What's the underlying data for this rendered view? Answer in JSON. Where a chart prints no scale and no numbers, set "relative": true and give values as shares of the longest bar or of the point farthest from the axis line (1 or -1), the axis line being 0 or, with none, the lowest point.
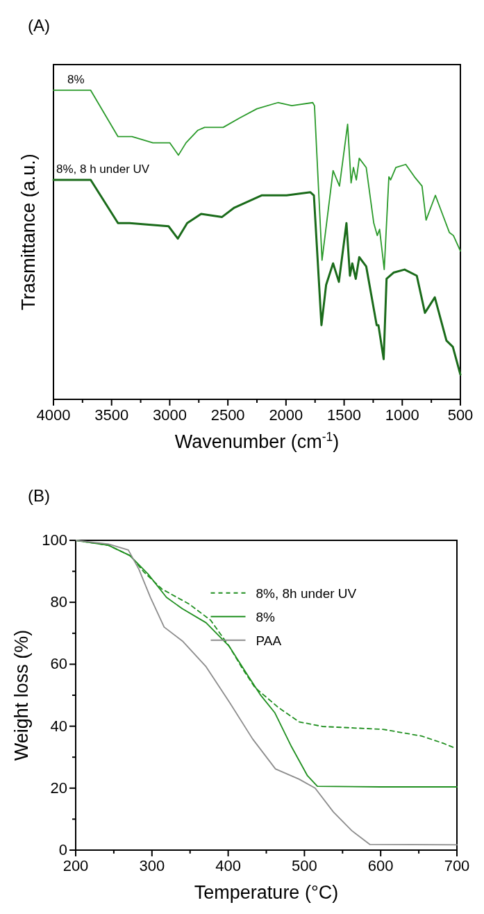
{
  "chart_data": [
    {
      "type": "line",
      "title": "(A)",
      "xlabel": "Wavenumber (cm$^{-1}$)",
      "ylabel": "Trasmittance (a.u.)",
      "relative": true,
      "legend": false,
      "tick_labels": "x",
      "xlim": [
        4000,
        500
      ],
      "xticks": [
        4000,
        {
          "value": 3750,
          "label": null
        },
        3500,
        {
          "value": 3250,
          "label": null
        },
        3000,
        {
          "value": 2750,
          "label": null
        },
        2500,
        {
          "value": 2250,
          "label": null
        },
        2000,
        {
          "value": 1750,
          "label": null
        },
        1500,
        {
          "value": 1250,
          "label": null
        },
        1000,
        {
          "value": 750,
          "label": null
        },
        500
      ],
      "series": [
        {
          "name": "8%",
          "color": "#2a9a2a",
          "x": [
            4000,
            3680,
            3445,
            3325,
            3145,
            3000,
            2925,
            2860,
            2760,
            2700,
            2540,
            2400,
            2250,
            2070,
            1950,
            1770,
            1755,
            1690,
            1595,
            1540,
            1470,
            1440,
            1420,
            1395,
            1370,
            1310,
            1245,
            1215,
            1195,
            1155,
            1115,
            1100,
            1055,
            970,
            895,
            830,
            795,
            715,
            655,
            595,
            560,
            500
          ],
          "values": [
            1.0,
            1.0,
            0.85,
            0.85,
            0.83,
            0.83,
            0.79,
            0.83,
            0.87,
            0.88,
            0.88,
            0.91,
            0.94,
            0.96,
            0.95,
            0.96,
            0.95,
            0.45,
            0.74,
            0.69,
            0.89,
            0.7,
            0.75,
            0.71,
            0.78,
            0.75,
            0.57,
            0.53,
            0.55,
            0.42,
            0.72,
            0.71,
            0.75,
            0.76,
            0.72,
            0.69,
            0.58,
            0.66,
            0.6,
            0.54,
            0.53,
            0.48
          ]
        },
        {
          "name": "8%, 8 h under UV",
          "color": "#1a6b1a",
          "x": [
            4000,
            3680,
            3445,
            3345,
            3010,
            2930,
            2850,
            2730,
            2550,
            2445,
            2210,
            1995,
            1790,
            1760,
            1695,
            1655,
            1595,
            1545,
            1480,
            1450,
            1430,
            1400,
            1370,
            1310,
            1220,
            1205,
            1160,
            1135,
            1075,
            980,
            875,
            805,
            720,
            620,
            565,
            500
          ],
          "values": [
            0.71,
            0.71,
            0.57,
            0.57,
            0.56,
            0.52,
            0.57,
            0.6,
            0.59,
            0.62,
            0.66,
            0.66,
            0.67,
            0.66,
            0.24,
            0.37,
            0.44,
            0.38,
            0.57,
            0.4,
            0.44,
            0.39,
            0.46,
            0.43,
            0.24,
            0.24,
            0.13,
            0.39,
            0.41,
            0.42,
            0.4,
            0.28,
            0.33,
            0.19,
            0.17,
            0.08
          ]
        }
      ]
    },
    {
      "type": "line",
      "title": "(B)",
      "xlabel": "Temperature (°C)",
      "ylabel": "Weight loss (%)",
      "legend": "right",
      "xlim": [
        200,
        700
      ],
      "ylim": [
        0,
        100
      ],
      "xticks": [
        200,
        {
          "value": 250,
          "label": null
        },
        300,
        {
          "value": 350,
          "label": null
        },
        400,
        {
          "value": 450,
          "label": null
        },
        500,
        {
          "value": 550,
          "label": null
        },
        600,
        {
          "value": 650,
          "label": null
        },
        700
      ],
      "yticks": [
        0,
        {
          "value": 10,
          "label": null
        },
        20,
        {
          "value": 30,
          "label": null
        },
        40,
        {
          "value": 50,
          "label": null
        },
        60,
        {
          "value": 70,
          "label": null
        },
        80,
        {
          "value": 90,
          "label": null
        },
        100
      ],
      "series": [
        {
          "name": "8%, 8h under UV",
          "color": "#1f8f1f",
          "line_style": "dashed",
          "x": [
            200,
            243,
            271,
            274,
            289,
            313,
            349,
            377,
            401,
            419,
            435,
            446,
            466,
            493,
            524,
            603,
            654,
            682,
            697
          ],
          "values": [
            100,
            98.4,
            95.1,
            94.4,
            89.9,
            84.3,
            79.4,
            74.2,
            65.9,
            58.5,
            52.5,
            50.2,
            46,
            41.4,
            39.9,
            39,
            36.8,
            34.5,
            33
          ]
        },
        {
          "name": "8%",
          "color": "#1f8f1f",
          "line_style": "solid",
          "x": [
            200,
            243,
            271,
            295,
            319,
            340,
            371,
            401,
            426,
            442,
            461,
            483,
            504,
            517,
            600,
            700
          ],
          "values": [
            100,
            98.4,
            95.1,
            89.1,
            81.6,
            77.9,
            73.4,
            65.9,
            56.3,
            50.2,
            44.4,
            33.4,
            24,
            20.6,
            20.4,
            20.4
          ]
        },
        {
          "name": "PAA",
          "color": "#8c8c8c",
          "line_style": "solid",
          "x": [
            200,
            243,
            269,
            283,
            298,
            316,
            340,
            371,
            401,
            432,
            462,
            493,
            514,
            538,
            562,
            586,
            700
          ],
          "values": [
            100,
            98.8,
            96.9,
            90.6,
            81.6,
            72,
            67.5,
            59.2,
            48,
            35.9,
            26.2,
            22.9,
            20,
            12.3,
            6.3,
            1.8,
            1.7
          ]
        }
      ]
    }
  ]
}
